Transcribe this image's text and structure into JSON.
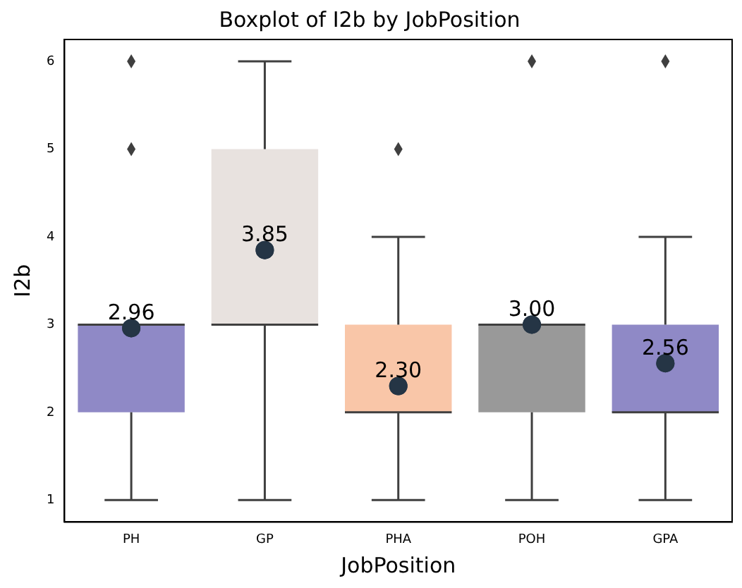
{
  "chart_data": {
    "type": "box",
    "title": "Boxplot of I2b by JobPosition",
    "xlabel": "JobPosition",
    "ylabel": "I2b",
    "categories": [
      "PH",
      "GP",
      "PHA",
      "POH",
      "GPA"
    ],
    "colors": [
      "#8f89c6",
      "#e8e2df",
      "#f9c6a8",
      "#999999",
      "#8f89c6"
    ],
    "boxes": [
      {
        "low": 1,
        "q1": 2,
        "median": 3,
        "q3": 3,
        "high": 3,
        "mean": 2.96,
        "outliers": [
          5,
          6
        ]
      },
      {
        "low": 1,
        "q1": 3,
        "median": 3,
        "q3": 5,
        "high": 6,
        "mean": 3.85
      },
      {
        "low": 1,
        "q1": 2,
        "median": 2,
        "q3": 3,
        "high": 4,
        "mean": 2.3,
        "outliers": [
          5
        ]
      },
      {
        "low": 1,
        "q1": 2,
        "median": 3,
        "q3": 3,
        "high": 3,
        "mean": 3.0,
        "outliers": [
          6
        ]
      },
      {
        "low": 1,
        "q1": 2,
        "median": 2,
        "q3": 3,
        "high": 4,
        "mean": 2.56,
        "outliers": [
          6
        ]
      }
    ],
    "value_labels": [
      "2.96",
      "3.85",
      "2.30",
      "3.00",
      "2.56"
    ],
    "ylim": [
      0.75,
      6.25
    ],
    "yticks": [
      1,
      2,
      3,
      4,
      5,
      6
    ],
    "grid": false,
    "legend": false
  }
}
